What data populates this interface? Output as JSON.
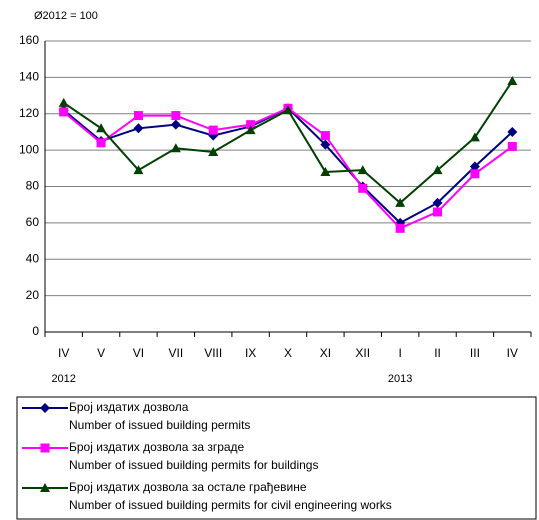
{
  "chart_data": {
    "type": "line",
    "subtitle": "Ø2012 = 100",
    "categories": [
      "IV",
      "V",
      "VI",
      "VII",
      "VIII",
      "IX",
      "X",
      "XI",
      "XII",
      "I",
      "II",
      "III",
      "IV"
    ],
    "year_labels": [
      "2012",
      null,
      null,
      null,
      null,
      null,
      null,
      null,
      null,
      "2013",
      null,
      null,
      null
    ],
    "series": [
      {
        "name": "Број издатих дозвола",
        "name_en": "Number  of  issued building permits",
        "color": "#000080",
        "marker": "diamond",
        "values": [
          122,
          105,
          112,
          114,
          108,
          113,
          123,
          103,
          80,
          60,
          71,
          91,
          110
        ]
      },
      {
        "name": "Број издатих дозвола за зграде",
        "name_en": "Number  of  issued building permits for buildings",
        "color": "#ff00ff",
        "marker": "square",
        "values": [
          121,
          104,
          119,
          119,
          111,
          114,
          123,
          108,
          79,
          57,
          66,
          87,
          102
        ]
      },
      {
        "name": "Број издатих дозвола за остале грађевине",
        "name_en": "Number  of  issued building permits for civil engineering works",
        "color": "#004000",
        "marker": "triangle",
        "values": [
          126,
          112,
          89,
          101,
          99,
          111,
          122,
          88,
          89,
          71,
          89,
          107,
          138
        ]
      }
    ],
    "ylim": [
      0,
      160
    ],
    "yticks": [
      0,
      20,
      40,
      60,
      80,
      100,
      120,
      140,
      160
    ],
    "grid": true
  }
}
